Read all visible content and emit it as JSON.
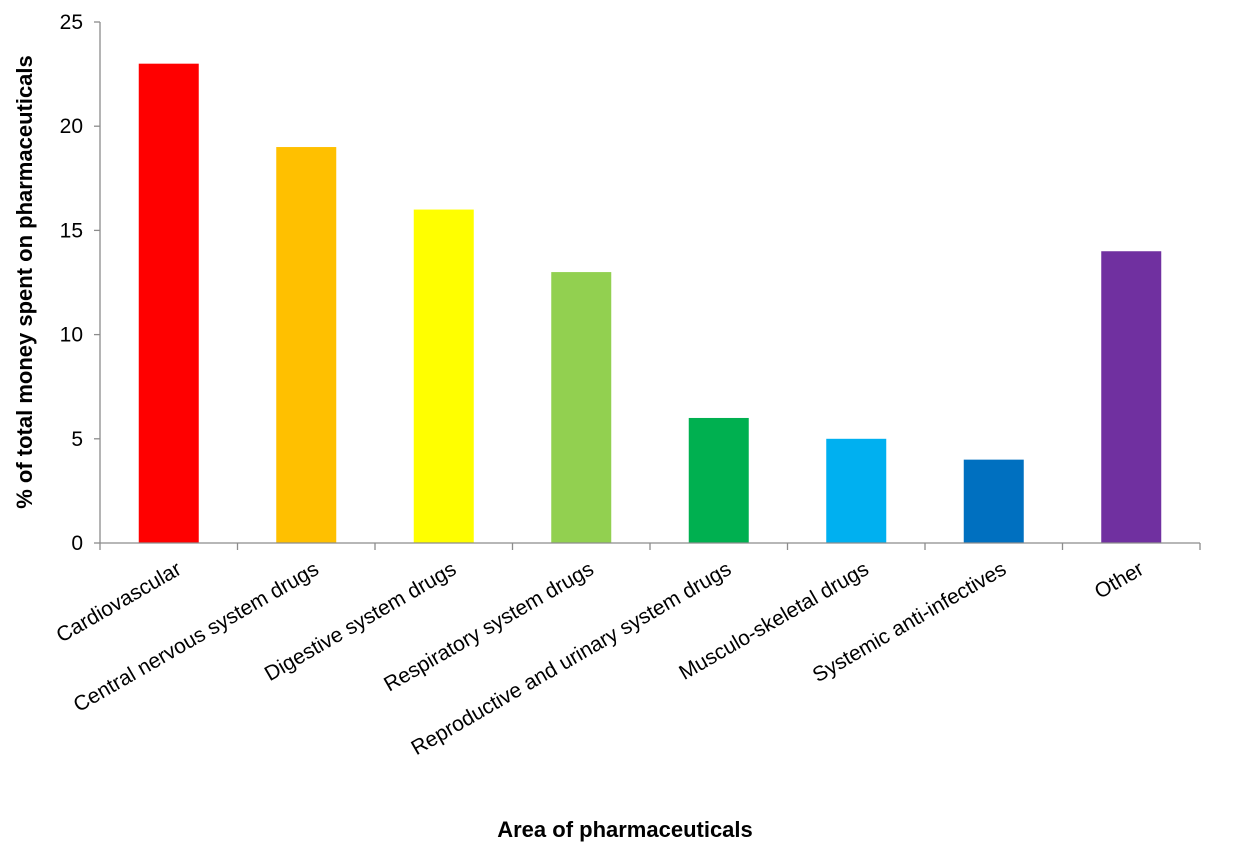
{
  "chart_data": {
    "type": "bar",
    "title": "",
    "xlabel": "Area of pharmaceuticals",
    "ylabel": "% of total money spent on pharmaceuticals",
    "ylim": [
      0,
      25
    ],
    "yticks": [
      0,
      5,
      10,
      15,
      20,
      25
    ],
    "grid": false,
    "legend": "none",
    "categories": [
      "Cardiovascular",
      "Central nervous system drugs",
      "Digestive system drugs",
      "Respiratory system drugs",
      "Reproductive and urinary system drugs",
      "Musculo-skeletal drugs",
      "Systemic anti-infectives",
      "Other"
    ],
    "values": [
      23,
      19,
      16,
      13,
      6,
      5,
      4,
      14
    ],
    "colors": [
      "#ff0000",
      "#ffc000",
      "#ffff00",
      "#92d050",
      "#00b050",
      "#00b0f0",
      "#0070c0",
      "#7030a0"
    ]
  }
}
